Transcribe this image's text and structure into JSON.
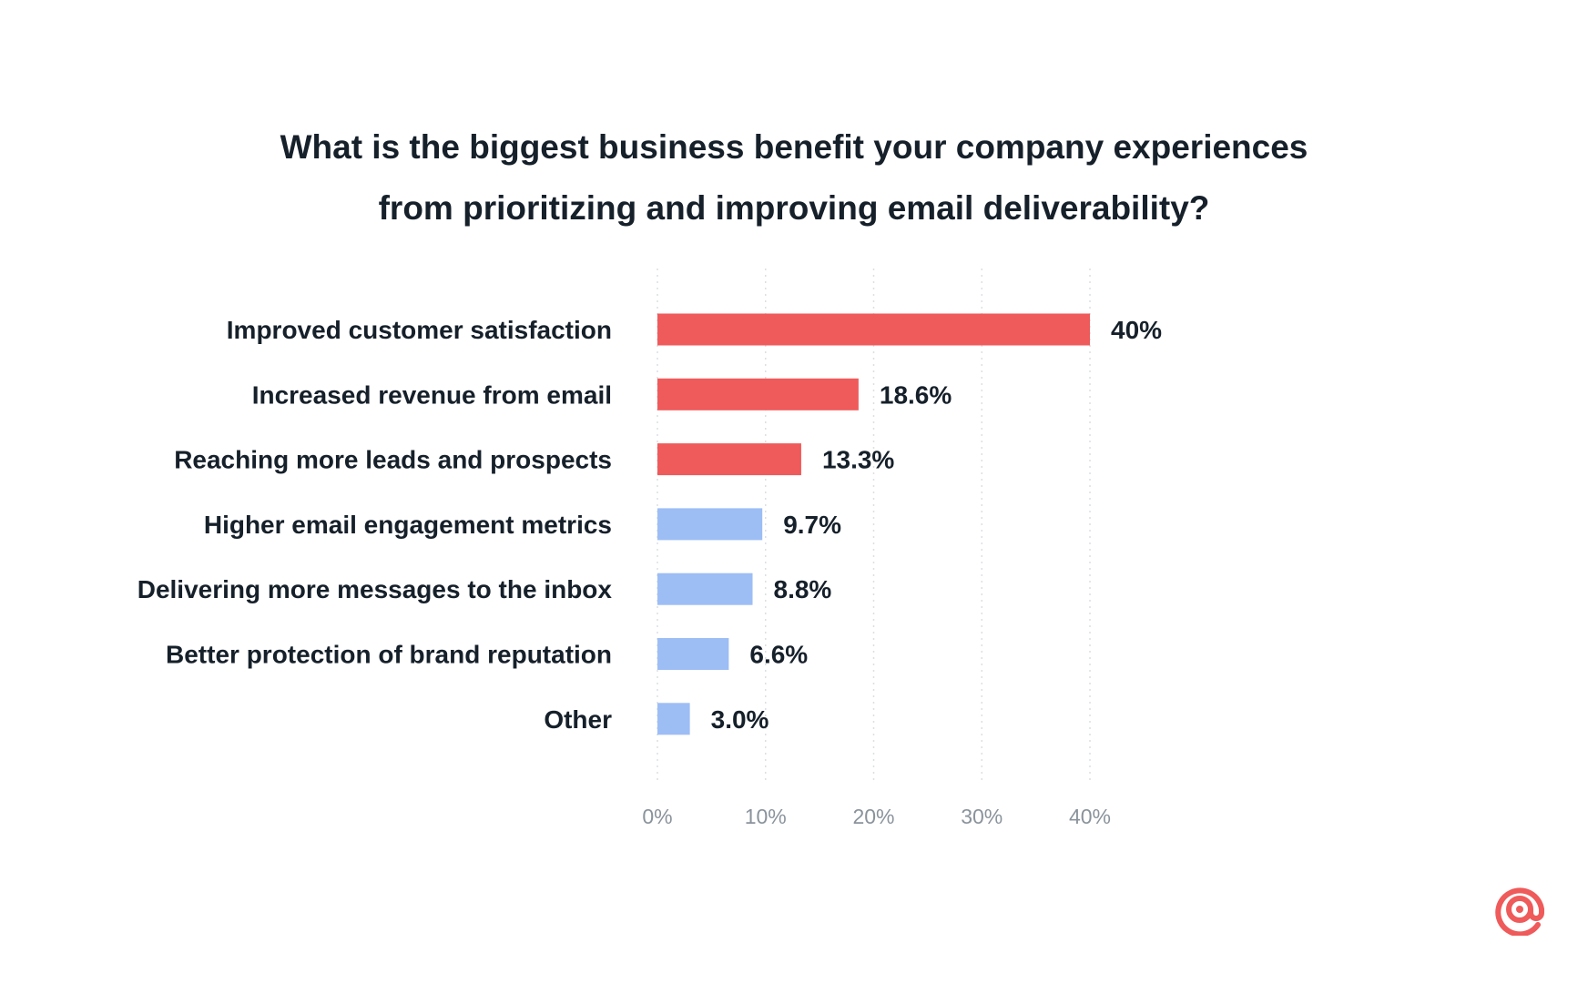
{
  "chart_data": {
    "type": "bar",
    "orientation": "horizontal",
    "title": "What is the biggest business benefit your company experiences from prioritizing and improving email deliverability?",
    "title_lines": [
      "What is the biggest business benefit your company experiences",
      "from prioritizing and improving email deliverability?"
    ],
    "categories": [
      "Improved customer satisfaction",
      "Increased revenue from email",
      "Reaching more leads and prospects",
      "Higher email engagement metrics",
      "Delivering more messages to the inbox",
      "Better protection of brand reputation",
      "Other"
    ],
    "values": [
      40,
      18.6,
      13.3,
      9.7,
      8.8,
      6.6,
      3.0
    ],
    "value_labels": [
      "40%",
      "18.6%",
      "13.3%",
      "9.7%",
      "8.8%",
      "6.6%",
      "3.0%"
    ],
    "bar_colors": [
      "#ef5a5a",
      "#ef5a5a",
      "#ef5a5a",
      "#9dbdf5",
      "#9dbdf5",
      "#9dbdf5",
      "#9dbdf5"
    ],
    "xlim": [
      0,
      40
    ],
    "x_ticks": [
      0,
      10,
      20,
      30,
      40
    ],
    "x_tick_labels": [
      "0%",
      "10%",
      "20%",
      "30%",
      "40%"
    ],
    "grid": "vertical dotted",
    "legend": "none"
  },
  "colors": {
    "highlight": "#ef5a5a",
    "secondary": "#9dbdf5",
    "text": "#16202a",
    "tick": "#8a939c",
    "grid": "#dcdfe3"
  },
  "logo": {
    "icon": "at-sign-icon",
    "color": "#ef5a5a"
  }
}
